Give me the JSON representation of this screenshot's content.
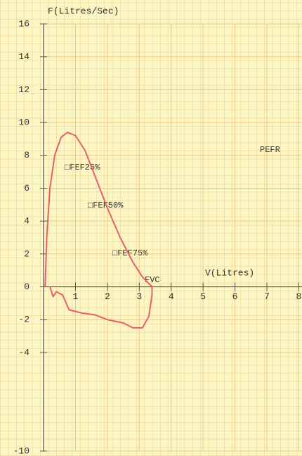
{
  "chart_data": {
    "type": "line",
    "y_label": "F(Litres/Sec)",
    "x_label": "V(Litres)",
    "annotations": [
      "PEFR",
      "□FEF25%",
      "□FEF50%",
      "□FEF75%",
      "FVC"
    ],
    "x": [
      0.05,
      0.1,
      0.2,
      0.35,
      0.55,
      0.75,
      1.0,
      1.3,
      1.6,
      2.0,
      2.4,
      2.8,
      3.1,
      3.4,
      3.4,
      3.3,
      3.1,
      2.8,
      2.5,
      2.0,
      1.6,
      1.2,
      0.8,
      0.6,
      0.4,
      0.3,
      0.2
    ],
    "values": [
      0,
      3,
      6,
      8,
      9.1,
      9.4,
      9.2,
      8.3,
      6.8,
      4.8,
      3,
      1.5,
      0.6,
      0,
      -0.5,
      -1.8,
      -2.5,
      -2.5,
      -2.2,
      -2.0,
      -1.7,
      -1.6,
      -1.4,
      -0.5,
      -0.3,
      -0.6,
      0
    ],
    "color": "#e5606f",
    "xlim": [
      0,
      8.1
    ],
    "ylim": [
      -10,
      16
    ],
    "xticks": [
      1,
      2,
      3,
      4,
      5,
      6,
      7,
      8
    ],
    "yticks": [
      16,
      14,
      12,
      10,
      8,
      6,
      4,
      2,
      0,
      -2,
      -4,
      -10
    ],
    "grid": true
  }
}
